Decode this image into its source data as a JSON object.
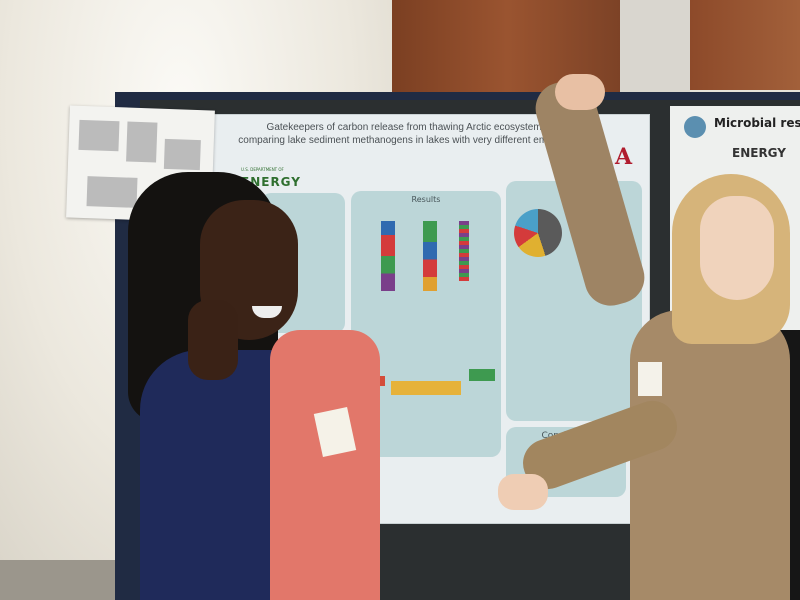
{
  "poster": {
    "title_line1": "Gatekeepers of carbon release from thawing Arctic ecosystems:",
    "title_line2": "comparing lake sediment methanogens in lakes with very different emissions",
    "sponsor_small": "U.S. DEPARTMENT OF",
    "sponsor": "ENERGY",
    "university_logo": "A",
    "results_heading": "Results",
    "conclusion_heading": "Conclusion",
    "colors": {
      "background": "#bcd6d8",
      "accent": "#b01c2e"
    }
  },
  "right_poster": {
    "title": "Microbial respo",
    "sponsor": "ENERGY"
  }
}
